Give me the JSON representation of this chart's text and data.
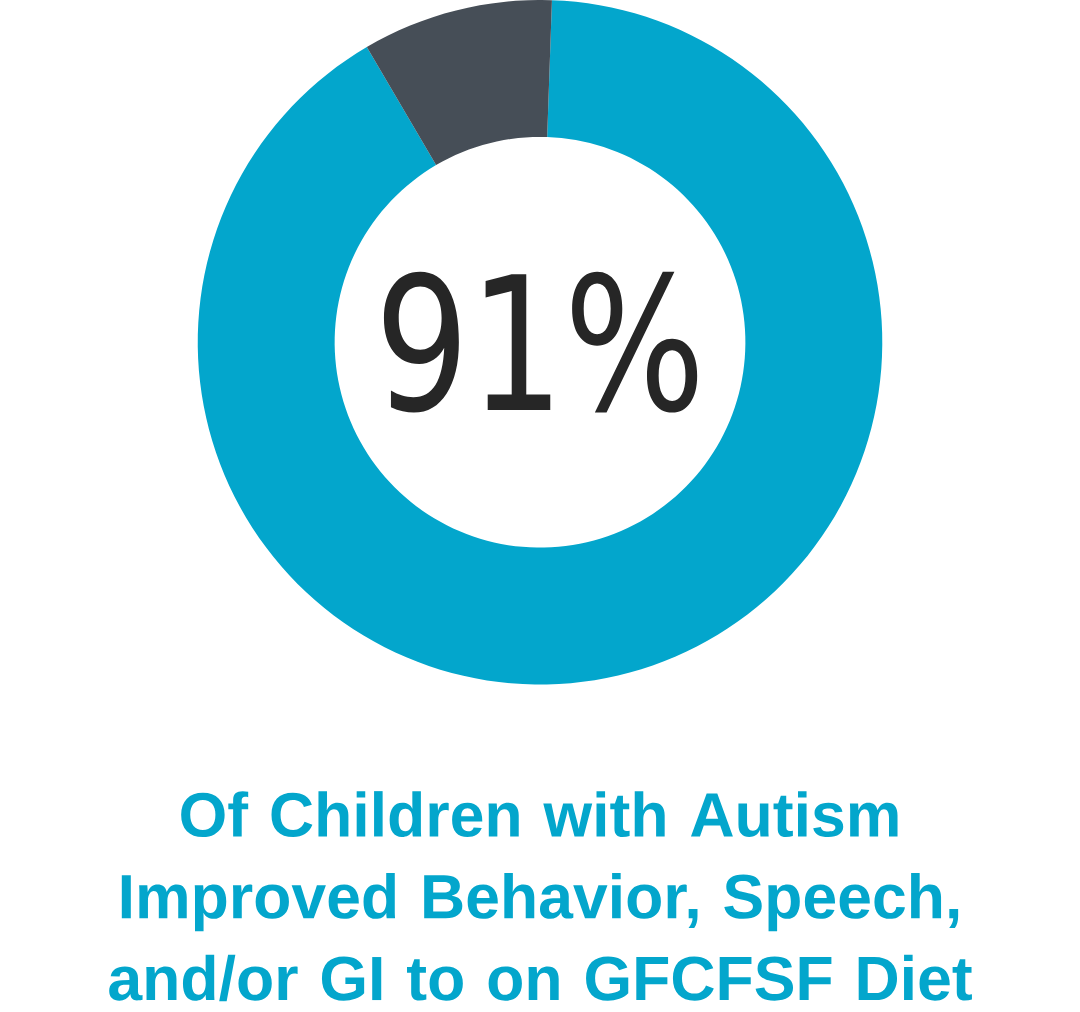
{
  "chart_data": {
    "type": "donut",
    "title": "Of Children with Autism Improved Behavior, Speech, and/or GI to on GFCFSF Diet",
    "categories": [
      null,
      null
    ],
    "values": [
      91,
      9
    ],
    "colors": [
      "#03a6cc",
      "#464e57"
    ],
    "value_labels": [
      "91%",
      null
    ]
  }
}
